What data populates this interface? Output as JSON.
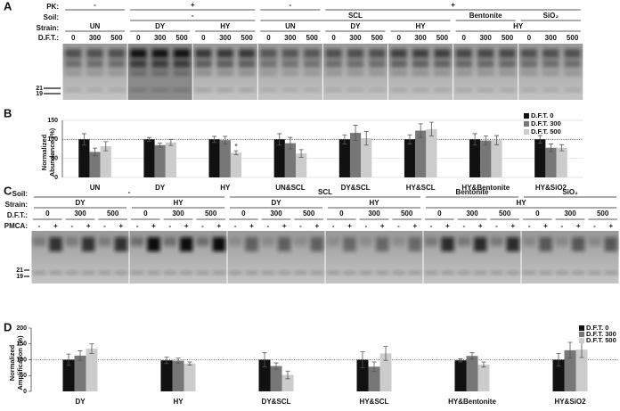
{
  "panels": {
    "a": "A",
    "b": "B",
    "c": "C",
    "d": "D"
  },
  "blot_a": {
    "headers": {
      "pk": "PK:",
      "soil": "Soil:",
      "strain": "Strain:",
      "dft": "D.F.T.:"
    },
    "pk": [
      "-",
      "+",
      "-",
      "+"
    ],
    "soil": [
      "-",
      "SCL",
      "Bentonite",
      "SiO₂"
    ],
    "strain": [
      "UN",
      "DY",
      "HY",
      "UN",
      "DY",
      "HY",
      "HY"
    ],
    "dft": [
      "0",
      "300",
      "500"
    ],
    "markers": [
      "21",
      "19"
    ]
  },
  "blot_c": {
    "headers": {
      "soil": "Soil:",
      "strain": "Strain:",
      "dft": "D.F.T.:",
      "pmca": "PMCA:"
    },
    "soil": [
      "-",
      "SCL",
      "Bentonite",
      "SiO₂"
    ],
    "strain": [
      "DY",
      "HY",
      "DY",
      "HY",
      "HY"
    ],
    "dft": [
      "0",
      "300",
      "500"
    ],
    "pmca": [
      "-",
      "+"
    ],
    "markers": [
      "21",
      "19"
    ]
  },
  "chart_data": [
    {
      "type": "bar",
      "y_label": "Normalized Abundance (%)",
      "categories": [
        "UN",
        "DY",
        "HY",
        "UN&SCL",
        "DY&SCL",
        "HY&SCL",
        "HY&Bentonite",
        "HY&SiO2"
      ],
      "series": [
        {
          "name": "D.F.T. 0",
          "color": "#111111",
          "values": [
            100,
            100,
            100,
            100,
            100,
            100,
            100,
            100
          ],
          "errors": [
            15,
            5,
            8,
            15,
            12,
            12,
            15,
            10
          ]
        },
        {
          "name": "D.F.T. 300",
          "color": "#777777",
          "values": [
            67,
            85,
            98,
            90,
            117,
            123,
            97,
            78
          ],
          "errors": [
            10,
            5,
            10,
            15,
            20,
            18,
            12,
            10
          ]
        },
        {
          "name": "D.F.T. 500",
          "color": "#cccccc",
          "values": [
            82,
            92,
            65,
            63,
            103,
            127,
            98,
            78
          ],
          "errors": [
            12,
            8,
            5,
            10,
            18,
            18,
            12,
            8
          ]
        }
      ],
      "annotations": [
        {
          "text": "*",
          "category": "HY",
          "series": "D.F.T. 500"
        }
      ],
      "ylim": [
        0,
        150
      ],
      "yticks": [
        0,
        50,
        100,
        150
      ],
      "reference_line": 100,
      "grid": true,
      "legend": "upper right"
    },
    {
      "type": "bar",
      "y_label": "Normalized Amplification (%)",
      "categories": [
        "DY",
        "HY",
        "DY&SCL",
        "HY&SCL",
        "HY&Bentonite",
        "HY&SiO2"
      ],
      "series": [
        {
          "name": "D.F.T. 0",
          "color": "#111111",
          "values": [
            100,
            98,
            100,
            100,
            98,
            100
          ],
          "errors": [
            18,
            10,
            22,
            25,
            5,
            20
          ]
        },
        {
          "name": "D.F.T. 300",
          "color": "#777777",
          "values": [
            113,
            97,
            80,
            78,
            112,
            130
          ],
          "errors": [
            15,
            8,
            10,
            15,
            10,
            25
          ]
        },
        {
          "name": "D.F.T. 500",
          "color": "#cccccc",
          "values": [
            135,
            88,
            52,
            120,
            85,
            132
          ],
          "errors": [
            15,
            5,
            12,
            22,
            8,
            25
          ]
        }
      ],
      "ylim": [
        0,
        200
      ],
      "yticks": [
        0,
        50,
        100,
        150,
        200
      ],
      "reference_line": 100,
      "grid": false,
      "legend": "upper right"
    }
  ]
}
